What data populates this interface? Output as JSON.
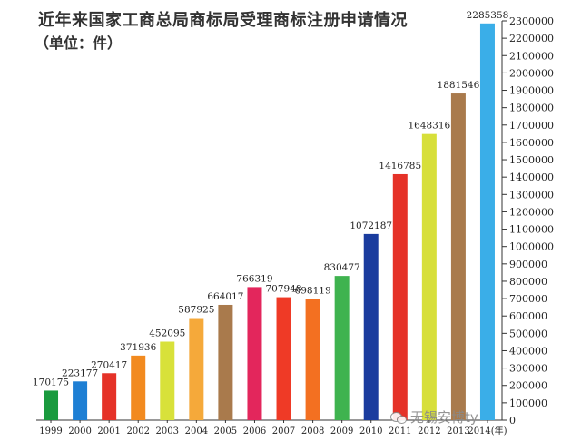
{
  "header": {
    "title": "近年来国家工商总局商标局受理商标注册申请情况",
    "subtitle": "（单位：件）"
  },
  "watermark": {
    "text": "无锡安博ty",
    "icon": "wechat-icon"
  },
  "chart_data": {
    "type": "bar",
    "title": "近年来国家工商总局商标局受理商标注册申请情况",
    "subtitle": "（单位：件）",
    "categories": [
      "1999",
      "2000",
      "2001",
      "2002",
      "2003",
      "2004",
      "2005",
      "2006",
      "2007",
      "2008",
      "2009",
      "2010",
      "2011",
      "2012",
      "2013",
      "2014(年)"
    ],
    "values": [
      170175,
      223177,
      270417,
      371936,
      452095,
      587925,
      664017,
      766319,
      707948,
      698119,
      830477,
      1072187,
      1416785,
      1648316,
      1881546,
      2285358
    ],
    "colors": [
      "#1a9a3e",
      "#1e7fd4",
      "#e53228",
      "#f28a1f",
      "#d8e13a",
      "#f5a93a",
      "#a97a4c",
      "#e3265c",
      "#ef3a26",
      "#f37021",
      "#3fb34f",
      "#1a3c9e",
      "#e53228",
      "#d7df3a",
      "#a97a4c",
      "#3aaee8"
    ],
    "ylim": [
      0,
      2300000
    ],
    "yticks": [
      0,
      100000,
      200000,
      300000,
      400000,
      500000,
      600000,
      700000,
      800000,
      900000,
      1000000,
      1100000,
      1200000,
      1300000,
      1400000,
      1500000,
      1600000,
      1700000,
      1800000,
      1900000,
      2000000,
      2100000,
      2200000,
      2300000
    ],
    "xlabel": "",
    "ylabel": "",
    "axis_position": "right",
    "grid": false,
    "legend": "none"
  }
}
